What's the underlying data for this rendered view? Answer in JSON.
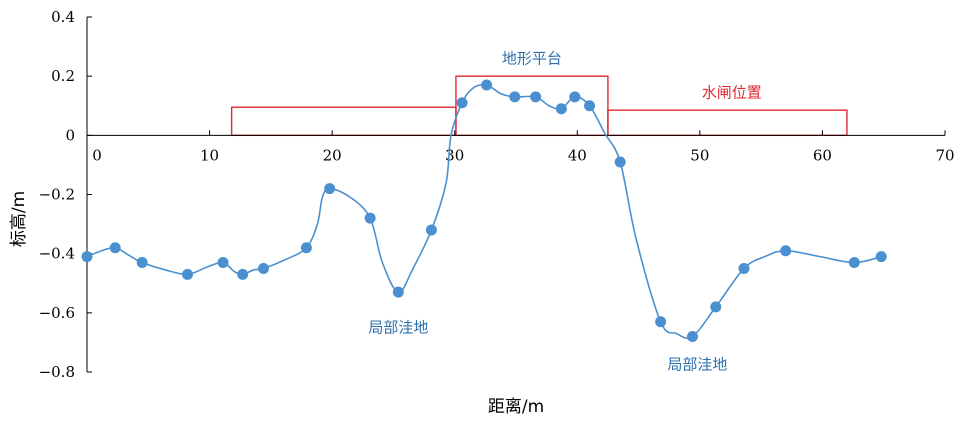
{
  "chart_data": {
    "type": "line",
    "xlabel": "距离/m",
    "ylabel": "标高/m",
    "xlim": [
      0,
      70
    ],
    "ylim": [
      -0.8,
      0.4
    ],
    "x_ticks": [
      0,
      10,
      20,
      30,
      40,
      50,
      60,
      70
    ],
    "x_tick_labels": [
      "0",
      "10",
      "20",
      "30",
      "40",
      "50",
      "60",
      "70"
    ],
    "y_ticks": [
      0.4,
      0.2,
      0,
      -0.2,
      -0.4,
      -0.6,
      -0.8
    ],
    "y_tick_labels": [
      "0.4",
      "0.2",
      "0",
      "−0.2",
      "−0.4",
      "−0.6",
      "−0.8"
    ],
    "grid": false,
    "series": [
      {
        "color": "#4a90d0",
        "points": [
          [
            0,
            -0.41
          ],
          [
            2.3,
            -0.38
          ],
          [
            4.5,
            -0.43
          ],
          [
            8.2,
            -0.47
          ],
          [
            11.1,
            -0.43
          ],
          [
            12.7,
            -0.47
          ],
          [
            14.4,
            -0.45
          ],
          [
            17.9,
            -0.38
          ],
          [
            19.8,
            -0.18
          ],
          [
            23.1,
            -0.28
          ],
          [
            25.4,
            -0.53
          ],
          [
            28.1,
            -0.32
          ],
          [
            30.6,
            0.11
          ],
          [
            32.6,
            0.17
          ],
          [
            34.9,
            0.13
          ],
          [
            36.6,
            0.13
          ],
          [
            38.7,
            0.09
          ],
          [
            39.8,
            0.13
          ],
          [
            41,
            0.1
          ],
          [
            43.5,
            -0.09
          ],
          [
            46.8,
            -0.63
          ],
          [
            49.4,
            -0.68
          ],
          [
            51.3,
            -0.58
          ],
          [
            53.6,
            -0.45
          ],
          [
            57,
            -0.39
          ],
          [
            62.6,
            -0.43
          ],
          [
            64.8,
            -0.41
          ]
        ],
        "curve": [
          [
            0,
            -0.41
          ],
          [
            1.2,
            -0.39
          ],
          [
            2.3,
            -0.38
          ],
          [
            3.4,
            -0.405
          ],
          [
            4.5,
            -0.43
          ],
          [
            6.4,
            -0.455
          ],
          [
            8.2,
            -0.47
          ],
          [
            9.8,
            -0.445
          ],
          [
            11.1,
            -0.43
          ],
          [
            12,
            -0.46
          ],
          [
            12.7,
            -0.47
          ],
          [
            13.6,
            -0.455
          ],
          [
            14.4,
            -0.45
          ],
          [
            16.2,
            -0.42
          ],
          [
            17.9,
            -0.38
          ],
          [
            18.8,
            -0.3
          ],
          [
            19.2,
            -0.21
          ],
          [
            19.8,
            -0.18
          ],
          [
            21.5,
            -0.21
          ],
          [
            23.1,
            -0.28
          ],
          [
            24.1,
            -0.43
          ],
          [
            25.4,
            -0.53
          ],
          [
            26.6,
            -0.45
          ],
          [
            28.1,
            -0.32
          ],
          [
            29.3,
            -0.16
          ],
          [
            29.7,
            0
          ],
          [
            30.6,
            0.11
          ],
          [
            31.5,
            0.16
          ],
          [
            32.6,
            0.17
          ],
          [
            33.8,
            0.14
          ],
          [
            34.9,
            0.13
          ],
          [
            36.6,
            0.13
          ],
          [
            37.7,
            0.1
          ],
          [
            38.7,
            0.09
          ],
          [
            39.8,
            0.13
          ],
          [
            41,
            0.1
          ],
          [
            42.2,
            0.01
          ],
          [
            43.5,
            -0.09
          ],
          [
            44.8,
            -0.35
          ],
          [
            46.8,
            -0.63
          ],
          [
            48.1,
            -0.67
          ],
          [
            49.4,
            -0.68
          ],
          [
            51.3,
            -0.58
          ],
          [
            53.6,
            -0.45
          ],
          [
            55.3,
            -0.41
          ],
          [
            57,
            -0.39
          ],
          [
            59.8,
            -0.41
          ],
          [
            62.6,
            -0.43
          ],
          [
            64.8,
            -0.41
          ]
        ]
      }
    ],
    "rectangles": [
      {
        "x": [
          11.8,
          30.1
        ],
        "y": [
          0,
          0.095
        ],
        "color": "#e02a33"
      },
      {
        "x": [
          30.1,
          42.5
        ],
        "y": [
          0,
          0.2
        ],
        "color": "#e02a33"
      },
      {
        "x": [
          42.5,
          62
        ],
        "y": [
          0,
          0.085
        ],
        "color": "#e02a33"
      }
    ],
    "annotations": [
      {
        "text": "地形平台",
        "x": 36.3,
        "y": 0.26,
        "color": "#2f6fae"
      },
      {
        "text": "水闸位置",
        "x": 52.6,
        "y": 0.145,
        "color": "#e02a33"
      },
      {
        "text": "局部洼地",
        "x": 25.4,
        "y": -0.65,
        "color": "#2f6fae"
      },
      {
        "text": "局部洼地",
        "x": 49.8,
        "y": -0.775,
        "color": "#2f6fae"
      }
    ]
  }
}
